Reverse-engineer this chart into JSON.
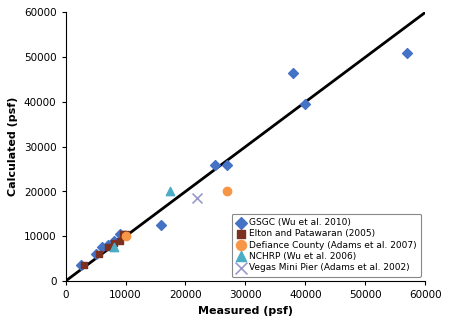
{
  "title": "",
  "xlabel": "Measured (psf)",
  "ylabel": "Calculated (psf)",
  "xlim": [
    0,
    60000
  ],
  "ylim": [
    0,
    60000
  ],
  "xticks": [
    0,
    10000,
    20000,
    30000,
    40000,
    50000,
    60000
  ],
  "yticks": [
    0,
    10000,
    20000,
    30000,
    40000,
    50000,
    60000
  ],
  "line_x": [
    0,
    60000
  ],
  "line_y": [
    0,
    60000
  ],
  "gsgc": {
    "x": [
      2500,
      5000,
      6000,
      7000,
      8000,
      9000,
      16000,
      25000,
      27000,
      38000,
      40000,
      57000
    ],
    "y": [
      3500,
      6000,
      7500,
      8000,
      9000,
      10500,
      12500,
      26000,
      26000,
      46500,
      39500,
      51000
    ],
    "color": "#4472C4",
    "marker": "D",
    "label": "GSGC (Wu et al. 2010)",
    "size": 5
  },
  "elton": {
    "x": [
      3000,
      5500,
      7000,
      8000,
      9000,
      9500,
      10000
    ],
    "y": [
      3500,
      6000,
      7500,
      8500,
      9000,
      10500,
      10500
    ],
    "color": "#7B3020",
    "marker": "s",
    "label": "Elton and Patawaran (2005)",
    "size": 5
  },
  "defiance": {
    "x": [
      10000,
      27000
    ],
    "y": [
      10000,
      20000
    ],
    "color": "#F79646",
    "marker": "o",
    "label": "Defiance County (Adams et al. 2007)",
    "size": 6
  },
  "nchrp": {
    "x": [
      8000,
      17500
    ],
    "y": [
      7500,
      20000
    ],
    "color": "#4BACC6",
    "marker": "^",
    "label": "NCHRP (Wu et al. 2006)",
    "size": 6
  },
  "vegas": {
    "x": [
      22000
    ],
    "y": [
      18500
    ],
    "color": "#9999CC",
    "marker": "x",
    "label": "Vegas Mini Pier (Adams et al. 2002)",
    "size": 6
  },
  "legend_fontsize": 6.5,
  "axis_label_fontsize": 8,
  "tick_fontsize": 7.5
}
